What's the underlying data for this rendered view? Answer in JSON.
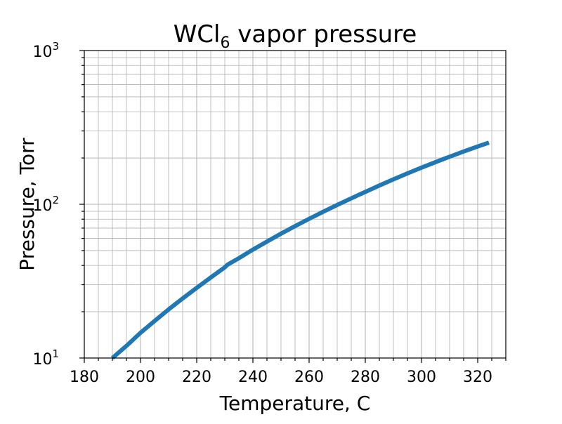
{
  "chart_data": {
    "type": "line",
    "title": {
      "base": "WCl",
      "subscript": "6",
      "rest": " vapor pressure"
    },
    "xlabel": "Temperature, C",
    "ylabel": "Pressure, Torr",
    "xlim": [
      180,
      330
    ],
    "ylim": [
      10,
      1000
    ],
    "yscale": "log",
    "grid": "major and minor",
    "x_ticks": [
      "180",
      "200",
      "220",
      "240",
      "260",
      "280",
      "300",
      "320"
    ],
    "y_ticks": [
      {
        "base": "10",
        "exp": "1",
        "value": 10
      },
      {
        "base": "10",
        "exp": "2",
        "value": 100
      },
      {
        "base": "10",
        "exp": "3",
        "value": 1000
      }
    ],
    "series": [
      {
        "color": "#1f77b4",
        "x": [
          190,
          195,
          200,
          205,
          210,
          215,
          220,
          225,
          230,
          231,
          235,
          240,
          245,
          250,
          255,
          260,
          265,
          270,
          275,
          280,
          282,
          285,
          290,
          295,
          300,
          305,
          310,
          315,
          320,
          324
        ],
        "y": [
          9.9,
          12.0,
          14.6,
          17.4,
          20.7,
          24.4,
          28.6,
          33.4,
          38.9,
          40.5,
          44.6,
          50.7,
          57.2,
          64.4,
          72.1,
          80.4,
          89.4,
          99.0,
          109.3,
          120.4,
          125.0,
          132.5,
          145.3,
          158.8,
          173.1,
          188.1,
          203.9,
          220.4,
          237.6,
          251.8
        ]
      }
    ]
  }
}
